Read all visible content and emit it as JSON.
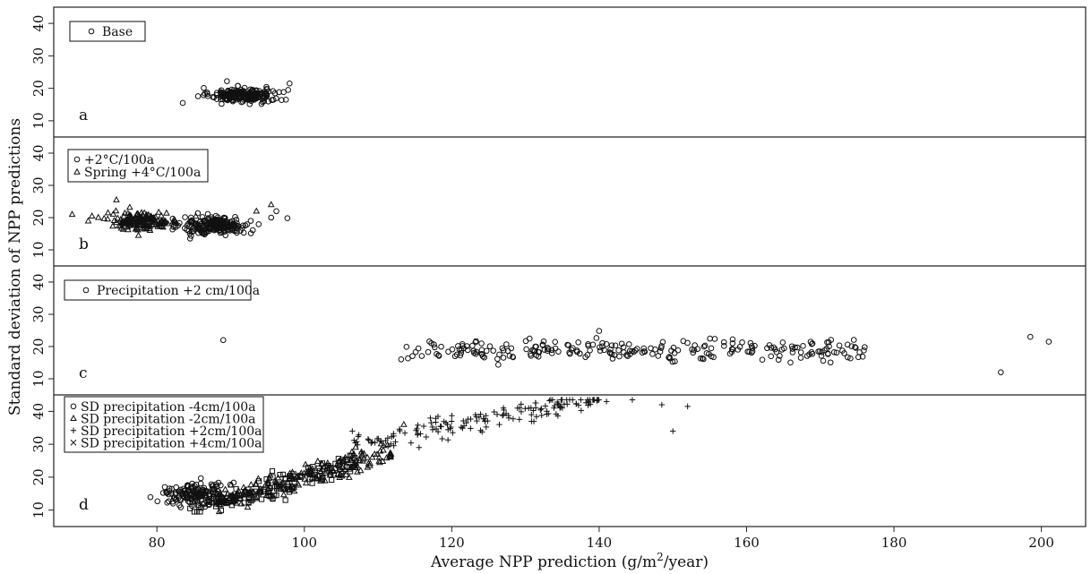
{
  "chart_data": {
    "type": "scatter",
    "xlabel": "Average NPP prediction (g/m",
    "xlabel_sup": "2",
    "xlabel_tail": "/year)",
    "ylabel": "Standard deviation of NPP predictions",
    "xticks": [
      "80",
      "100",
      "120",
      "140",
      "160",
      "180",
      "200"
    ],
    "yticks": [
      "10",
      "20",
      "30",
      "40"
    ],
    "xlim": [
      66,
      206
    ],
    "ylim": [
      5,
      45
    ],
    "panels": [
      {
        "letter": "a",
        "legend": [
          "Base"
        ],
        "series": [
          {
            "marker": "circle",
            "clusters": [
              {
                "x_center": 91,
                "x_spread": 3.2,
                "y_center": 18,
                "y_spread": 1.8,
                "n": 200
              },
              {
                "x_center": 95,
                "x_spread": 1.8,
                "y_center": 17.5,
                "y_spread": 1.8,
                "n": 25
              }
            ],
            "points": [
              [
                83.5,
                15.5
              ],
              [
                97.5,
                16.5
              ],
              [
                98,
                21.5
              ],
              [
                97.8,
                19.5
              ],
              [
                89.5,
                22.2
              ]
            ]
          }
        ]
      },
      {
        "letter": "b",
        "legend": [
          "+2°C/100a",
          "Spring +4°C/100a"
        ],
        "series": [
          {
            "marker": "circle",
            "clusters": [
              {
                "x_center": 88,
                "x_spread": 3.8,
                "y_center": 17.5,
                "y_spread": 2.3,
                "n": 220
              }
            ],
            "points": [
              [
                95.5,
                20
              ],
              [
                96.2,
                22
              ],
              [
                97.7,
                19.8
              ],
              [
                84.5,
                13.5
              ]
            ]
          },
          {
            "marker": "triangle",
            "clusters": [
              {
                "x_center": 78,
                "x_spread": 4.2,
                "y_center": 19,
                "y_spread": 2.3,
                "n": 160
              }
            ],
            "points": [
              [
                68.5,
                21
              ],
              [
                74.5,
                25.5
              ],
              [
                93.5,
                22
              ],
              [
                95.5,
                24
              ]
            ]
          }
        ]
      },
      {
        "letter": "c",
        "legend": [
          "Precipitation +2 cm/100a"
        ],
        "series": [
          {
            "marker": "circle",
            "clusters": [
              {
                "x_center": 145,
                "x_spread": 32,
                "x_uniform": true,
                "y_center": 19,
                "y_spread": 2.5,
                "n": 250
              }
            ],
            "points": [
              [
                89,
                22
              ],
              [
                194.5,
                12
              ],
              [
                201,
                21.5
              ],
              [
                198.5,
                23
              ]
            ]
          }
        ]
      },
      {
        "letter": "d",
        "legend": [
          "SD precipitation -4cm/100a",
          "SD precipitation -2cm/100a",
          "SD precipitation +2cm/100a",
          "SD precipitation +4cm/100a"
        ],
        "series": [
          {
            "marker": "circle",
            "clusters": [
              {
                "x_center": 85,
                "x_spread": 3.5,
                "y_center": 15,
                "y_spread": 3,
                "n": 160
              }
            ],
            "points": []
          },
          {
            "marker": "triangle",
            "clusters": [
              {
                "x_center": 100,
                "x_spread": 12,
                "x_uniform": true,
                "y_slope": 0.6,
                "y_intercept": -40,
                "y_spread": 2.8,
                "n": 200
              }
            ],
            "points": [
              [
                113.5,
                36
              ]
            ]
          },
          {
            "marker": "plus",
            "clusters": [
              {
                "x_center": 123,
                "x_spread": 17,
                "x_uniform": true,
                "y_slope": 0.45,
                "y_intercept": -18,
                "y_spread": 3,
                "n": 160
              }
            ],
            "points": [
              [
                141,
                43
              ],
              [
                144.5,
                43.5
              ],
              [
                148.5,
                42
              ],
              [
                152,
                41.5
              ],
              [
                150,
                34
              ]
            ]
          },
          {
            "marker": "square",
            "clusters": [
              {
                "x_center": 96,
                "x_spread": 11,
                "x_uniform": true,
                "y_slope": 0.65,
                "y_intercept": -45,
                "y_spread": 3,
                "n": 140
              }
            ],
            "points": [
              [
                84.5,
                10.5
              ]
            ]
          }
        ]
      }
    ]
  }
}
